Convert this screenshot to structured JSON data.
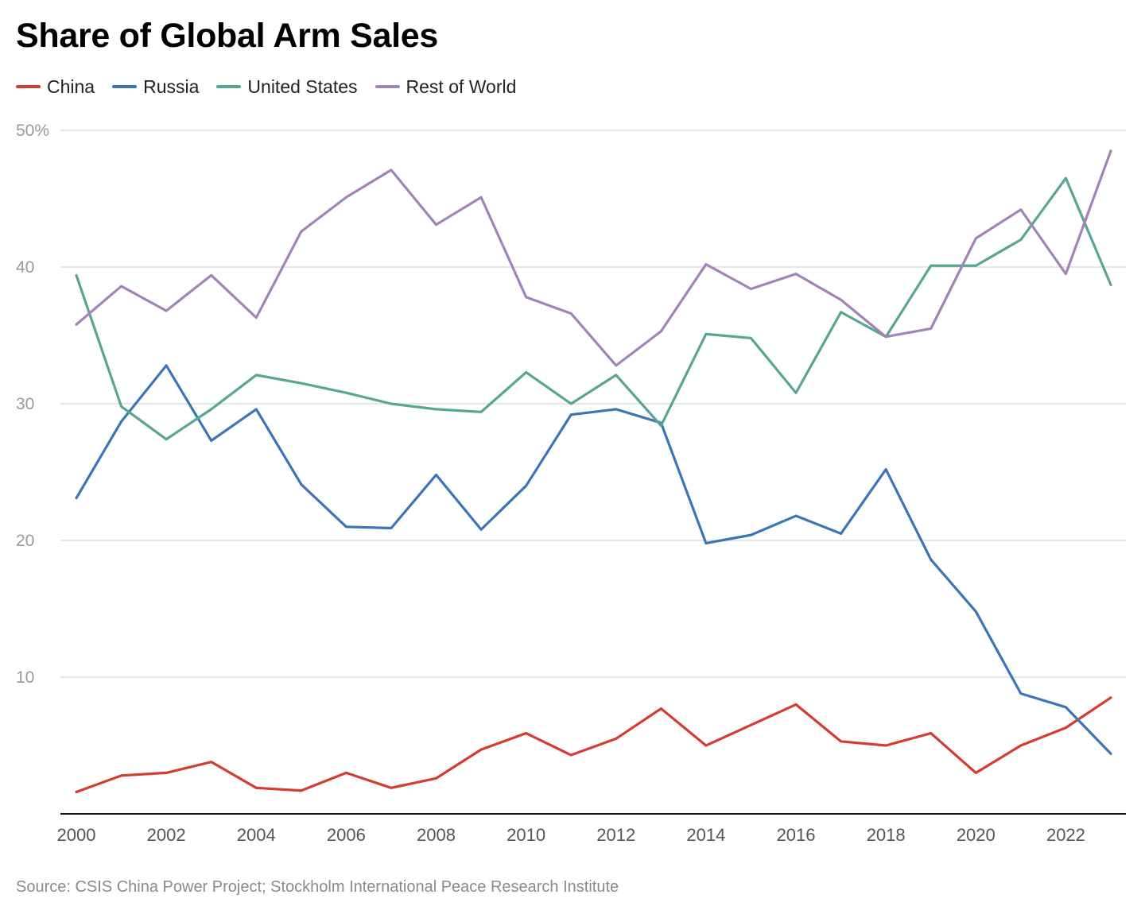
{
  "chart_data": {
    "type": "line",
    "title": "Share of Global Arm Sales",
    "source": "Source: CSIS China Power Project; Stockholm International Peace Research Institute",
    "xlabel": "",
    "ylabel": "",
    "x": [
      2000,
      2001,
      2002,
      2003,
      2004,
      2005,
      2006,
      2007,
      2008,
      2009,
      2010,
      2011,
      2012,
      2013,
      2014,
      2015,
      2016,
      2017,
      2018,
      2019,
      2020,
      2021,
      2022,
      2023
    ],
    "xlim": [
      2000,
      2023
    ],
    "ylim": [
      0,
      50
    ],
    "x_ticks": [
      {
        "value": 2000,
        "label": "2000"
      },
      {
        "value": 2002,
        "label": "2002"
      },
      {
        "value": 2004,
        "label": "2004"
      },
      {
        "value": 2006,
        "label": "2006"
      },
      {
        "value": 2008,
        "label": "2008"
      },
      {
        "value": 2010,
        "label": "2010"
      },
      {
        "value": 2012,
        "label": "2012"
      },
      {
        "value": 2014,
        "label": "2014"
      },
      {
        "value": 2016,
        "label": "2016"
      },
      {
        "value": 2018,
        "label": "2018"
      },
      {
        "value": 2020,
        "label": "2020"
      },
      {
        "value": 2022,
        "label": "2022"
      }
    ],
    "y_ticks": [
      {
        "value": 10,
        "label": "10"
      },
      {
        "value": 20,
        "label": "20"
      },
      {
        "value": 30,
        "label": "30"
      },
      {
        "value": 40,
        "label": "40"
      },
      {
        "value": 50,
        "label": "50%"
      }
    ],
    "grid": true,
    "legend_position": "top-left",
    "series": [
      {
        "name": "China",
        "color": "#d63b2f",
        "values": [
          1.6,
          2.8,
          3.0,
          3.8,
          1.9,
          1.7,
          3.0,
          1.9,
          2.6,
          4.7,
          5.9,
          4.3,
          5.5,
          7.7,
          5.0,
          6.5,
          8.0,
          5.3,
          5.0,
          5.9,
          3.0,
          5.0,
          6.3,
          8.5
        ]
      },
      {
        "name": "Russia",
        "color": "#3b75b8",
        "values": [
          23.1,
          28.7,
          32.8,
          27.3,
          29.6,
          24.1,
          21.0,
          20.9,
          24.8,
          20.8,
          24.0,
          29.2,
          29.6,
          28.6,
          19.8,
          20.4,
          21.8,
          20.5,
          25.2,
          18.6,
          14.8,
          8.8,
          7.8,
          4.4
        ]
      },
      {
        "name": "United States",
        "color": "#57a595",
        "values": [
          39.4,
          29.8,
          27.4,
          29.6,
          32.1,
          31.5,
          30.8,
          30.0,
          29.6,
          29.4,
          32.3,
          30.0,
          32.1,
          28.4,
          35.1,
          34.8,
          30.8,
          36.7,
          34.9,
          40.1,
          40.1,
          42.0,
          46.5,
          38.7
        ]
      },
      {
        "name": "Rest of World",
        "color": "#a283b8",
        "values": [
          35.8,
          38.6,
          36.8,
          39.4,
          36.3,
          42.6,
          45.1,
          47.1,
          43.1,
          45.1,
          37.8,
          36.6,
          32.8,
          35.3,
          40.2,
          38.4,
          39.5,
          37.6,
          34.9,
          35.5,
          42.1,
          44.2,
          39.5,
          48.5
        ]
      }
    ]
  }
}
